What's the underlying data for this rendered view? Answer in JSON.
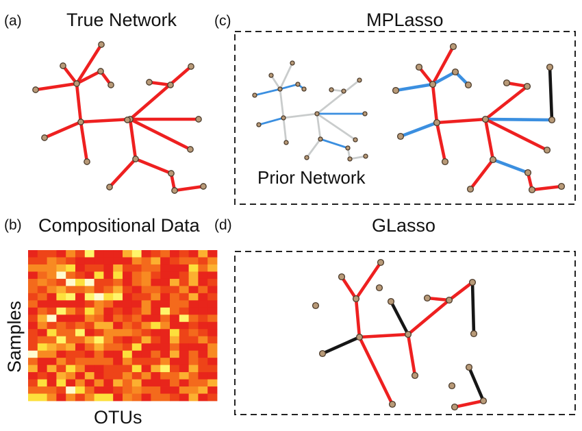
{
  "panels": {
    "a": {
      "letter": "(a)",
      "title": "True Network"
    },
    "b": {
      "letter": "(b)",
      "title": "Compositional Data",
      "ylabel": "Samples",
      "xlabel": "OTUs"
    },
    "c": {
      "letter": "(c)",
      "title": "MPLasso",
      "prior_label": "Prior Network"
    },
    "d": {
      "letter": "(d)",
      "title": "GLasso"
    }
  },
  "colors": {
    "edge_red": "#ee2020",
    "edge_blue": "#3b8fe0",
    "edge_black": "#161616",
    "edge_gray": "#c9cccc",
    "node_fill": "#b89a78",
    "node_stroke": "#4a3a2a",
    "frame": "#222222"
  },
  "legend_colors": [
    "#ee2020",
    "#3b8fe0",
    "#161616",
    "#c9cccc"
  ],
  "heatmap": {
    "rows": 21,
    "cols": 20,
    "palette": [
      "#e8251b",
      "#ee4418",
      "#f46a1c",
      "#f88a22",
      "#fcb030",
      "#fde03c",
      "#fff56a",
      "#fffbd0"
    ]
  }
}
